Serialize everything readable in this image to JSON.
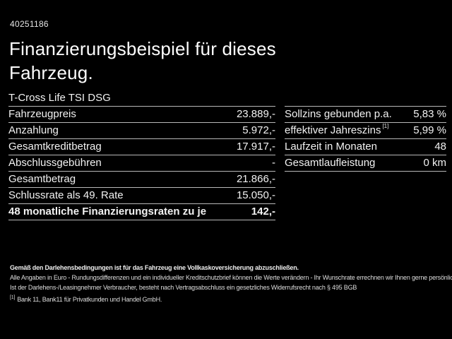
{
  "page": {
    "background_color": "#000000",
    "text_color": "#f2f2f2",
    "divider_color": "#b8b8b8"
  },
  "header": {
    "reference_number": "40251186",
    "title_line1": "Finanzierungsbeispiel für dieses",
    "title_line2": "Fahrzeug.",
    "vehicle_model": "T-Cross Life TSI DSG"
  },
  "finance_table": {
    "rows": [
      {
        "label": "Fahrzeugpreis",
        "value": "23.889,-"
      },
      {
        "label": "Anzahlung",
        "value": "5.972,-"
      },
      {
        "label": "Gesamtkreditbetrag",
        "value": "17.917,-"
      },
      {
        "label": "Abschlussgebühren",
        "value": "-"
      },
      {
        "label": "Gesamtbetrag",
        "value": "21.866,-"
      },
      {
        "label": "Schlussrate als 49. Rate",
        "value": "15.050,-"
      },
      {
        "label": "48 monatliche Finanzierungsraten zu je",
        "value": "142,-"
      }
    ]
  },
  "terms_table": {
    "rows": [
      {
        "label": "Sollzins gebunden p.a.",
        "sup": "",
        "value": "5,83 %"
      },
      {
        "label": "effektiver Jahreszins",
        "sup": "[1]",
        "value": "5,99 %"
      },
      {
        "label": "Laufzeit in Monaten",
        "sup": "",
        "value": "48"
      },
      {
        "label": "Gesamtlaufleistung",
        "sup": "",
        "value": "0 km"
      }
    ]
  },
  "footer": {
    "line1_bold": "Gemäß den Darlehensbedingungen ist für das Fahrzeug eine Vollkaskoversicherung abzuschließen.",
    "line2": "Alle Angaben in Euro - Rundungsdifferenzen und ein individueller Kreditschutzbrief können die Werte verändern - Ihr Wunschrate errechnen wir Ihnen gerne persönlich",
    "line3": "Ist der Darlehens-/Leasingnehmer Verbraucher, besteht nach Vertragsabschluss ein gesetzliches Widerrufsrecht nach § 495 BGB",
    "footnote_marker": "[1]",
    "footnote_text": "Bank 11, Bank11 für Privatkunden und Handel GmbH."
  }
}
